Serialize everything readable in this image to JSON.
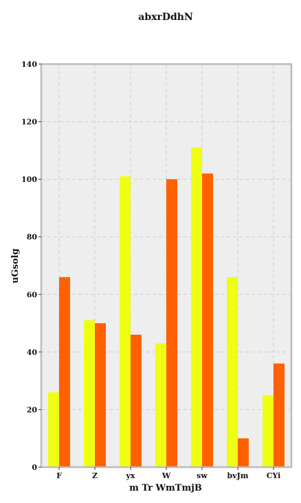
{
  "chart_data": {
    "type": "bar",
    "title": "abxrDdhN",
    "xlabel": "m Tr WmTmjB",
    "ylabel": "uGsolg",
    "categories": [
      "F",
      "Z",
      "yx",
      "W",
      "sw",
      "bvJm",
      "CYi"
    ],
    "series": [
      {
        "values": [
          26,
          51,
          101,
          43,
          111,
          66,
          25
        ]
      },
      {
        "values": [
          66,
          50,
          46,
          100,
          102,
          10,
          36
        ]
      }
    ],
    "ylim": [
      0,
      140
    ],
    "yticks": [
      0,
      20,
      40,
      60,
      80,
      100,
      120,
      140
    ],
    "grid": true,
    "legend": "none"
  },
  "colors": {
    "series": [
      "#eeff11",
      "#ff6000"
    ],
    "plot_background": "#eeeeee",
    "frame": "#bbbbbb",
    "grid": "#cccccc"
  }
}
